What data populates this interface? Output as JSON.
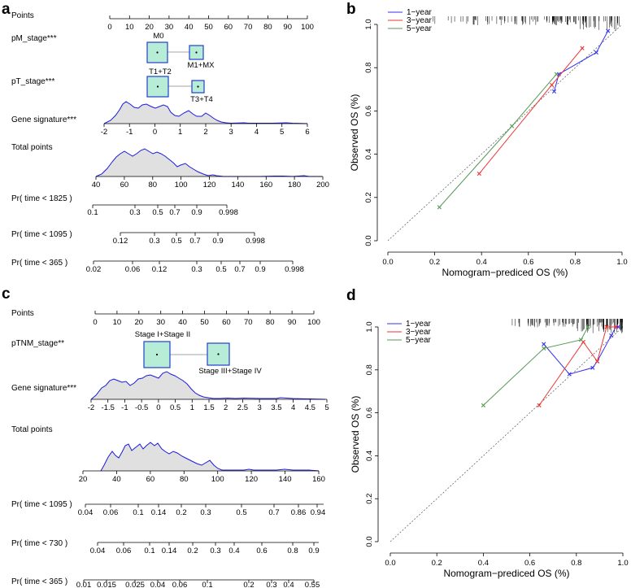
{
  "panels": {
    "a": {
      "letter": "a",
      "rows": {
        "points": "Points",
        "pm": "pM_stage***",
        "pt": "pT_stage***",
        "gene": "Gene signature***",
        "total": "Total points",
        "p1825": "Pr( time < 1825 )",
        "p1095": "Pr( time < 1095 )",
        "p365": "Pr( time < 365 )"
      },
      "pm_levels": [
        "M0",
        "M1+MX"
      ],
      "pt_levels": [
        "T1+T2",
        "T3+T4"
      ],
      "points_ticks": [
        "0",
        "10",
        "20",
        "30",
        "40",
        "50",
        "60",
        "70",
        "80",
        "90",
        "100"
      ],
      "gene_ticks": [
        "-2",
        "-1",
        "0",
        "1",
        "2",
        "3",
        "4",
        "5",
        "6"
      ],
      "total_ticks": [
        "40",
        "60",
        "80",
        "100",
        "120",
        "140",
        "160",
        "180",
        "200"
      ],
      "pr1825_ticks": [
        "0.1",
        "0.3",
        "0.5",
        "0.7",
        "0.9",
        "0.998"
      ],
      "pr1095_ticks": [
        "0.12",
        "0.3",
        "0.5",
        "0.7",
        "0.9",
        "0.998"
      ],
      "pr365_ticks": [
        "0.02",
        "0.06",
        "0.12",
        "0.3",
        "0.5",
        "0.7",
        "0.9",
        "0.998"
      ]
    },
    "c": {
      "letter": "c",
      "rows": {
        "points": "Points",
        "ptnm": "pTNM_stage**",
        "gene": "Gene signature***",
        "total": "Total points",
        "p1095": "Pr( time < 1095 )",
        "p730": "Pr( time < 730 )",
        "p365": "Pr( time < 365 )"
      },
      "ptnm_levels": [
        "Stage I+Stage II",
        "Stage III+Stage IV"
      ],
      "points_ticks": [
        "0",
        "10",
        "20",
        "30",
        "40",
        "50",
        "60",
        "70",
        "80",
        "90",
        "100"
      ],
      "gene_ticks": [
        "-2",
        "-1.5",
        "-1",
        "-0.5",
        "0",
        "0.5",
        "1",
        "1.5",
        "2",
        "2.5",
        "3",
        "3.5",
        "4",
        "4.5",
        "5"
      ],
      "total_ticks": [
        "20",
        "40",
        "60",
        "80",
        "100",
        "120",
        "140",
        "160"
      ],
      "pr1095_ticks": [
        "0.04",
        "0.06",
        "0.1",
        "0.14",
        "0.2",
        "0.3",
        "0.5",
        "0.7",
        "0.86",
        "0.94"
      ],
      "pr730_ticks": [
        "0.04",
        "0.06",
        "0.1",
        "0.14",
        "0.2",
        "0.3",
        "0.4",
        "0.6",
        "0.8",
        "0.9"
      ],
      "pr365_ticks": [
        "0.01",
        "0.015",
        "0.025",
        "0.04",
        "0.06",
        "0.1",
        "0.2",
        "0.3",
        "0.4",
        "0.55"
      ]
    },
    "b": {
      "letter": "b"
    },
    "d": {
      "letter": "d"
    }
  },
  "chart_data": [
    {
      "panel": "b",
      "type": "line",
      "xlabel": "Nomogram−prediced OS (%)",
      "ylabel": "Observed OS (%)",
      "xlim": [
        0,
        1
      ],
      "ylim": [
        0,
        1
      ],
      "x_ticks": [
        "0.0",
        "0.2",
        "0.4",
        "0.6",
        "0.8",
        "1.0"
      ],
      "y_ticks": [
        "0.0",
        "0.2",
        "0.4",
        "0.6",
        "0.8",
        "1.0"
      ],
      "legend": [
        "1−year",
        "3−year",
        "5−year"
      ],
      "legend_position": "top-left",
      "series": [
        {
          "name": "1−year",
          "color": "#3333ee",
          "x": [
            0.71,
            0.73,
            0.89,
            0.94
          ],
          "y": [
            0.69,
            0.77,
            0.87,
            0.97
          ]
        },
        {
          "name": "3−year",
          "color": "#ee3333",
          "x": [
            0.39,
            0.7,
            0.83
          ],
          "y": [
            0.31,
            0.72,
            0.89
          ]
        },
        {
          "name": "5−year",
          "color": "#559955",
          "x": [
            0.22,
            0.53,
            0.72
          ],
          "y": [
            0.155,
            0.53,
            0.77
          ]
        }
      ]
    },
    {
      "panel": "d",
      "type": "line",
      "xlabel": "Nomogram−prediced OS (%)",
      "ylabel": "Observed OS (%)",
      "xlim": [
        0,
        1
      ],
      "ylim": [
        0,
        1
      ],
      "x_ticks": [
        "0.0",
        "0.2",
        "0.4",
        "0.6",
        "0.8",
        "1.0"
      ],
      "y_ticks": [
        "0.0",
        "0.2",
        "0.4",
        "0.6",
        "0.8",
        "1.0"
      ],
      "legend": [
        "1−year",
        "3−year",
        "5−year"
      ],
      "legend_position": "top-left",
      "series": [
        {
          "name": "1−year",
          "color": "#3333ee",
          "x": [
            0.66,
            0.77,
            0.87,
            0.89,
            0.95,
            0.97,
            0.98
          ],
          "y": [
            0.92,
            0.78,
            0.81,
            0.84,
            0.96,
            1.0,
            1.0
          ]
        },
        {
          "name": "3−year",
          "color": "#ee3333",
          "x": [
            0.64,
            0.83,
            0.89,
            0.93,
            0.97
          ],
          "y": [
            0.635,
            0.93,
            0.84,
            1.0,
            1.0
          ]
        },
        {
          "name": "5−year",
          "color": "#559955",
          "x": [
            0.4,
            0.66,
            0.82,
            0.85
          ],
          "y": [
            0.635,
            0.9,
            0.94,
            1.0
          ]
        }
      ]
    }
  ]
}
